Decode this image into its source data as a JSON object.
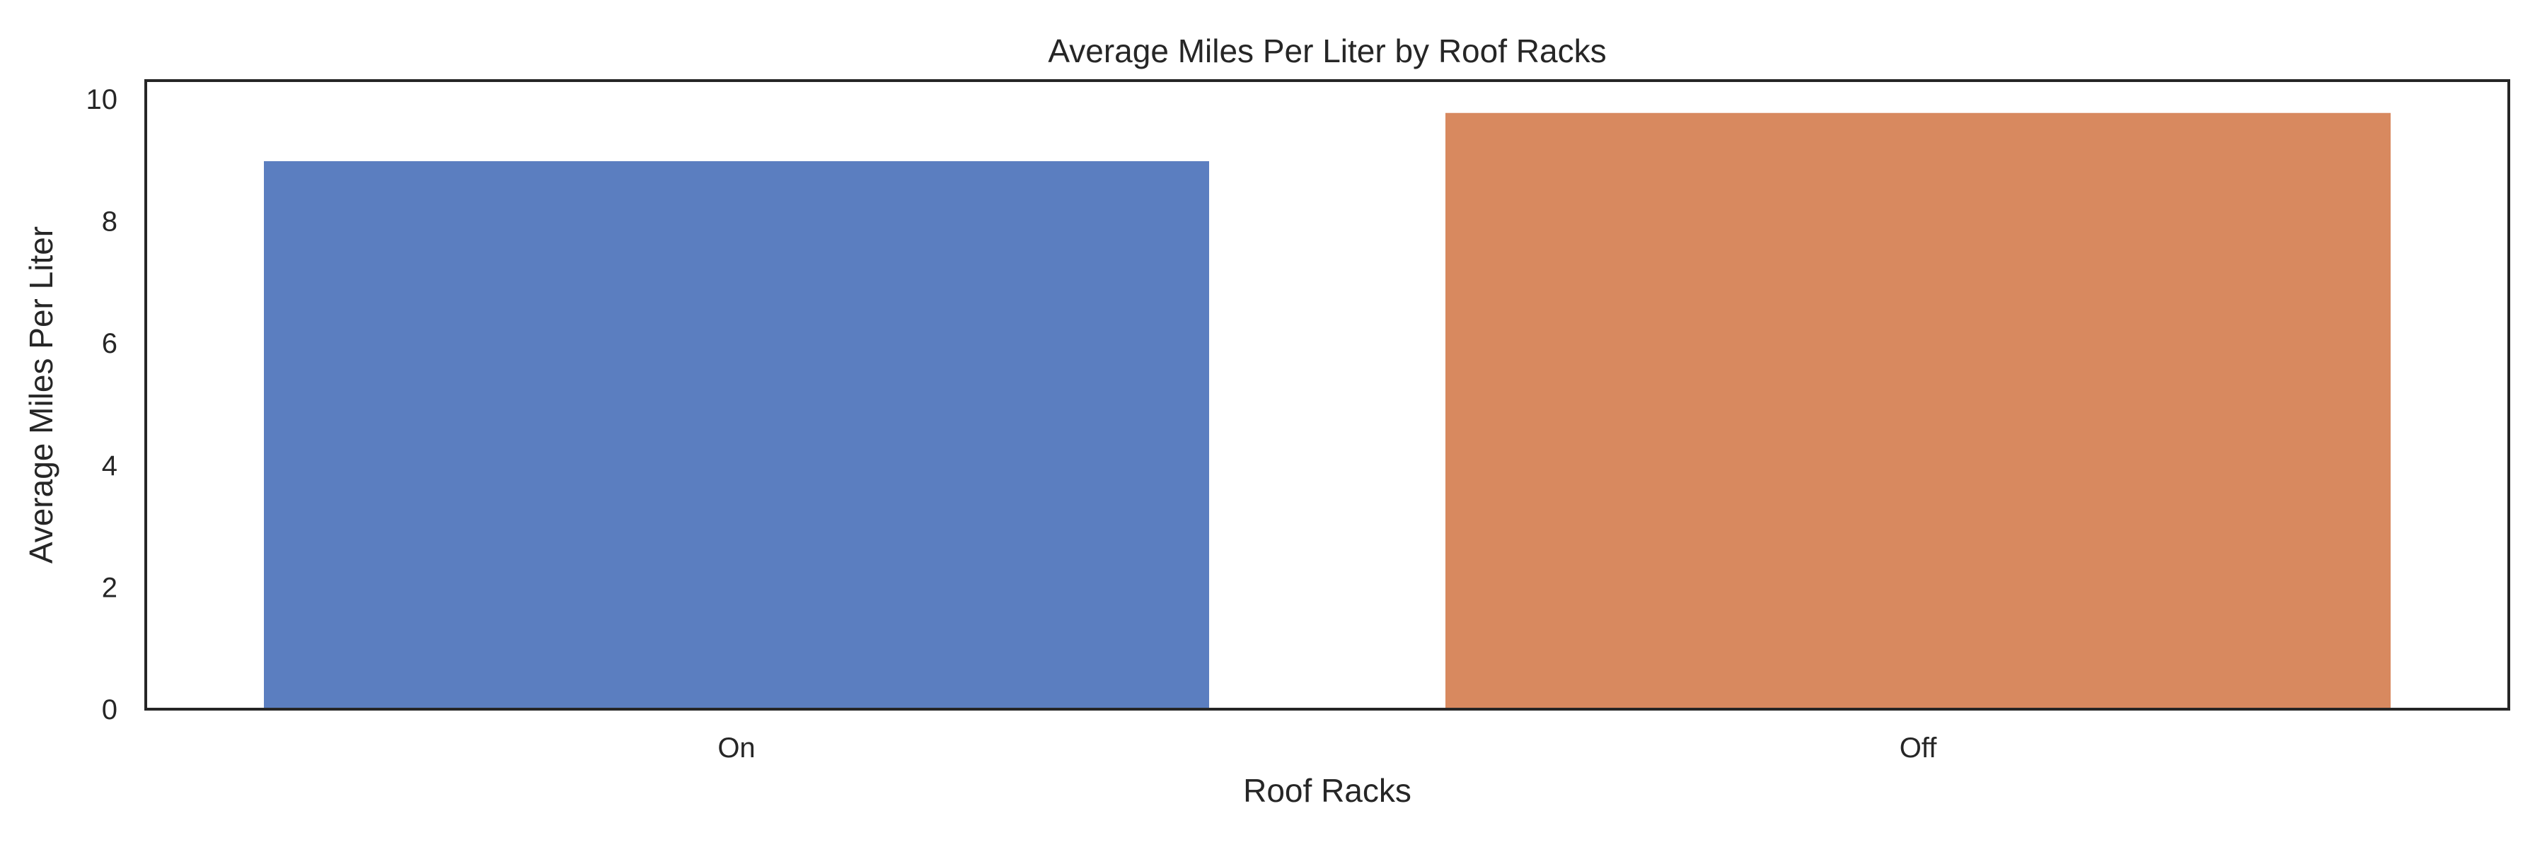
{
  "chart_data": {
    "type": "bar",
    "title": "Average Miles Per Liter by Roof Racks",
    "xlabel": "Roof Racks",
    "ylabel": "Average Miles Per Liter",
    "categories": [
      "On",
      "Off"
    ],
    "values": [
      8.98,
      9.77
    ],
    "ylim": [
      0,
      10.3
    ],
    "yticks": [
      0,
      2,
      4,
      6,
      8,
      10
    ],
    "yticks_labels": [
      "0",
      "2",
      "4",
      "6",
      "8",
      "10"
    ],
    "colors": [
      "#5b7ec0",
      "#d8895f"
    ],
    "grid": false,
    "legend": "none"
  }
}
